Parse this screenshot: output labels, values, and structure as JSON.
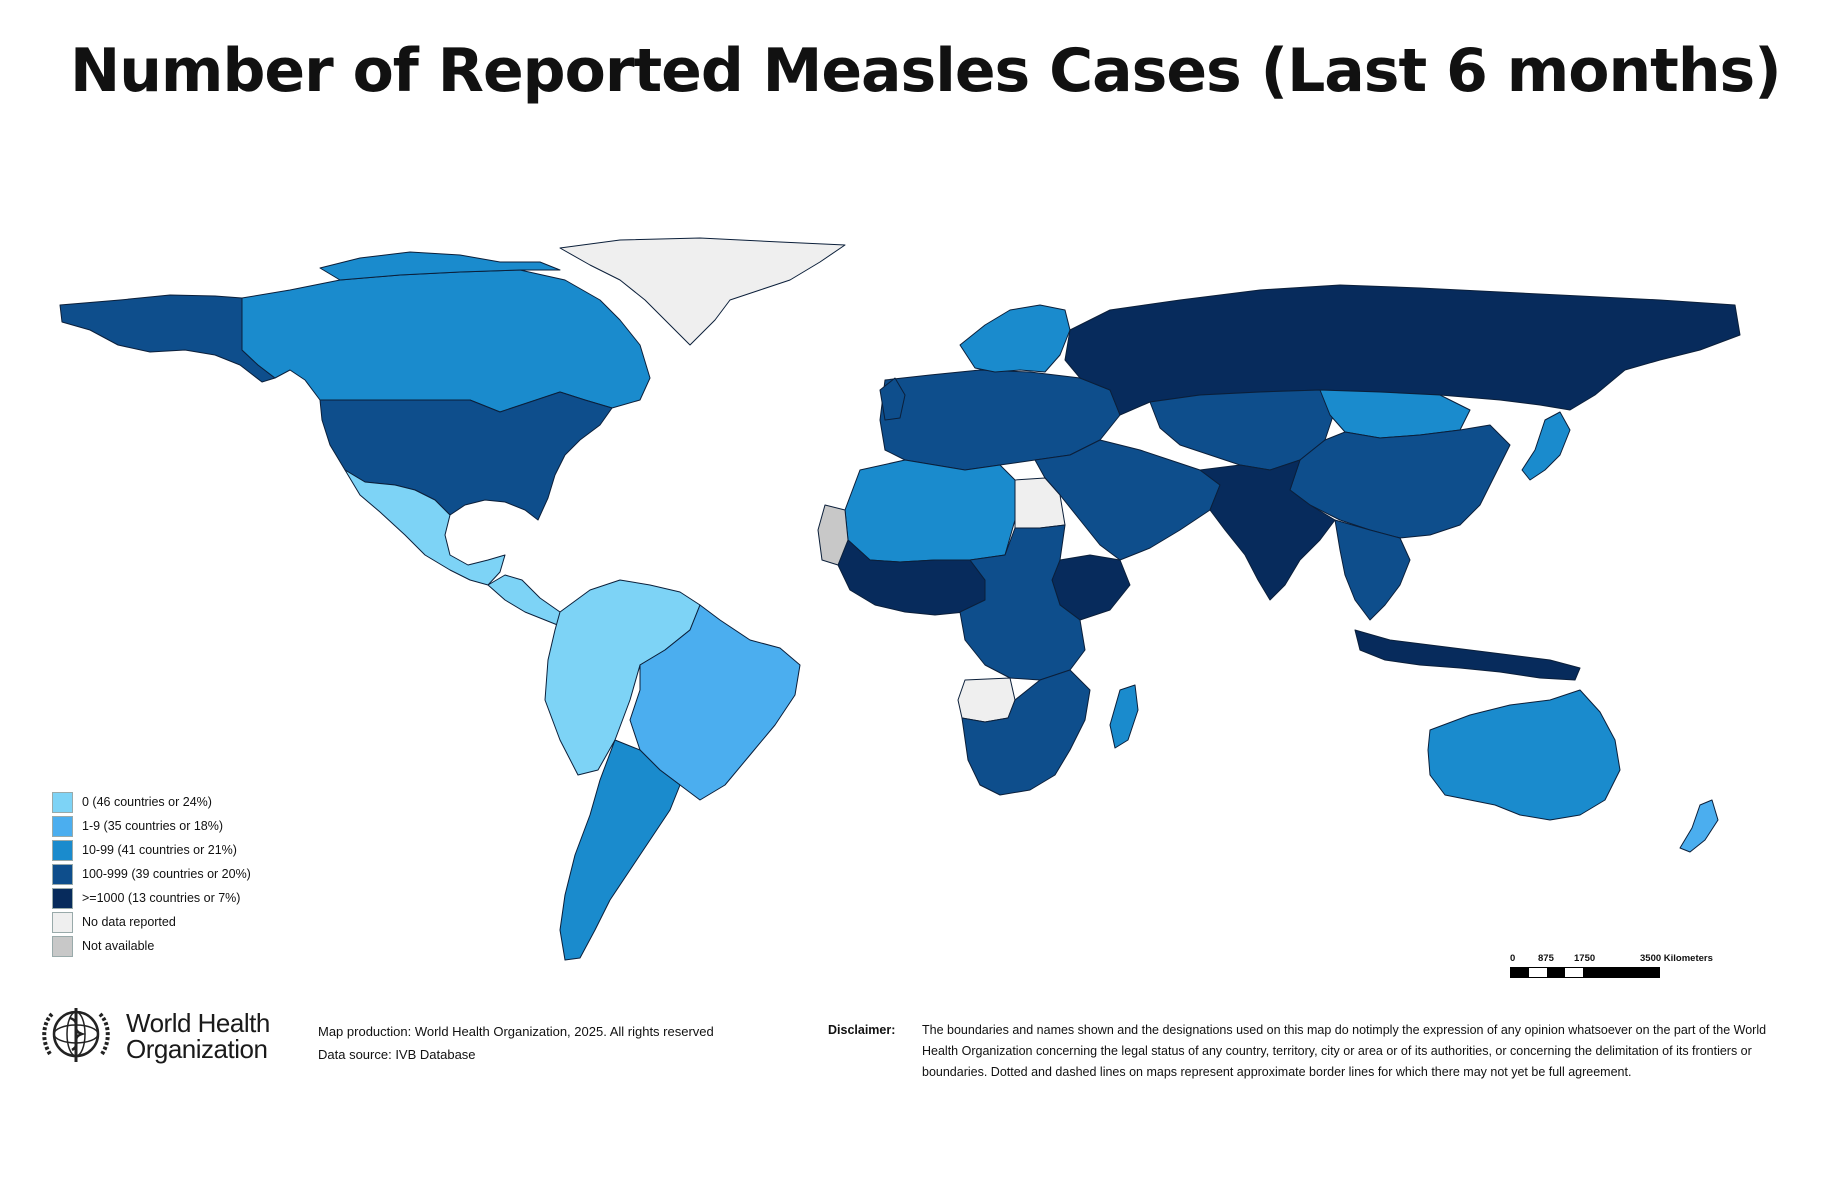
{
  "title": "Number of Reported Measles Cases (Last 6 months)",
  "legend": {
    "items": [
      {
        "label": "0 (46 countries or 24%)",
        "color": "#7dd3f6"
      },
      {
        "label": "1-9 (35 countries or 18%)",
        "color": "#4baeef"
      },
      {
        "label": "10-99 (41 countries or 21%)",
        "color": "#1a8bcd"
      },
      {
        "label": "100-999 (39 countries or 20%)",
        "color": "#0e4e8c"
      },
      {
        "label": ">=1000 (13 countries or 7%)",
        "color": "#072b5c"
      },
      {
        "label": "No data reported",
        "color": "#efefef"
      },
      {
        "label": "Not available",
        "color": "#c8c8c8"
      }
    ]
  },
  "scale": {
    "ticks": [
      "0",
      "875",
      "1750",
      "3500 Kilometers"
    ]
  },
  "organization": {
    "name_line1": "World Health",
    "name_line2": "Organization"
  },
  "credits": {
    "production": "Map production: World Health Organization, 2025. All rights reserved",
    "source": "Data source: IVB Database"
  },
  "disclaimer": {
    "label": "Disclaimer:",
    "text": "The boundaries and names shown and the designations used on this map do notimply the expression of any opinion whatsoever on the part of the World Health Organization concerning the legal status of any country, territory, city or area or of its authorities, or concerning the delimitation of its frontiers or boundaries. Dotted and dashed lines on maps represent approximate border lines for which there may not yet be full agreement."
  },
  "regions": {
    "canada": "10-99",
    "alaska": "100-999",
    "usa": "100-999",
    "greenland": "No data reported",
    "mexico": "0",
    "central_america": "0",
    "south_america_north": "0",
    "brazil": "1-9",
    "argentina": "10-99",
    "west_africa": ">=1000",
    "north_africa": "10-99",
    "egypt": "No data reported",
    "central_africa": "100-999",
    "ethiopia": ">=1000",
    "angola": "No data reported",
    "southern_africa": "100-999",
    "madagascar": "10-99",
    "europe": "100-999",
    "scandinavia": "10-99",
    "russia": ">=1000",
    "kazakhstan": "100-999",
    "mongolia": "10-99",
    "china": "100-999",
    "middle_east": "100-999",
    "india": ">=1000",
    "southeast_asia": "100-999",
    "indonesia": ">=1000",
    "japan": "10-99",
    "australia": "10-99",
    "new_zealand": "1-9",
    "western_sahara": "Not available"
  }
}
